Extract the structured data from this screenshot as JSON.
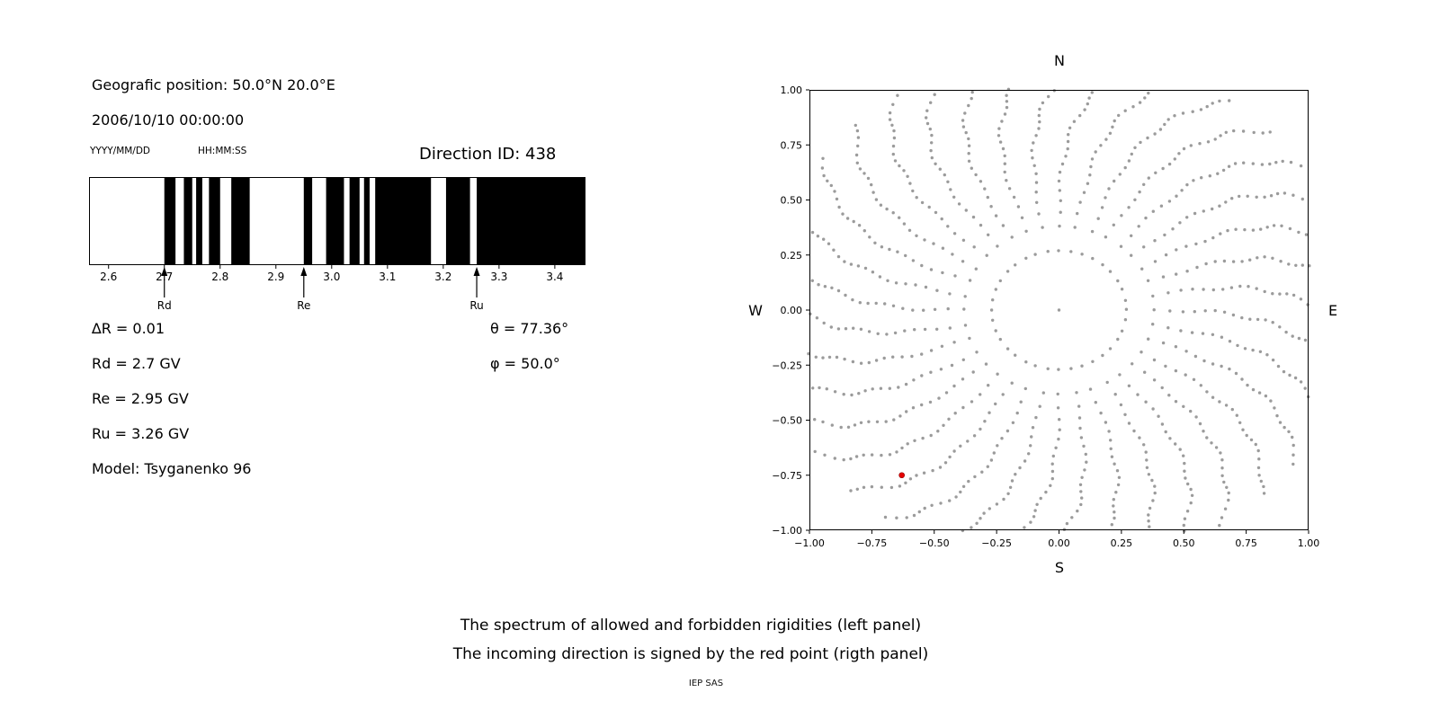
{
  "header": {
    "geographic_position": "Geografic position: 50.0°N 20.0°E",
    "datetime": "2006/10/10 00:00:00",
    "date_format_hint": "YYYY/MM/DD",
    "time_format_hint": "HH:MM:SS",
    "direction_id": "Direction ID: 438"
  },
  "parameters": {
    "delta_r": "∆R = 0.01",
    "theta": "θ = 77.36°",
    "rd": "Rd = 2.7 GV",
    "phi": "φ = 50.0°",
    "re": "Re = 2.95 GV",
    "ru": "Ru = 3.26 GV",
    "model": "Model: Tsyganenko 96"
  },
  "caption": {
    "line1": "The spectrum of allowed and forbidden rigidities (left panel)",
    "line2": "The incoming direction is signed by the red point (rigth panel)",
    "credit": "IEP SAS"
  },
  "chart_data": [
    {
      "type": "bar",
      "name": "rigidity_spectrum",
      "description": "Barcode spectrum of cosmic-ray rigidities: black bars = allowed, white gaps = forbidden",
      "xlabel_units": "GV",
      "xlim": [
        2.565,
        3.455
      ],
      "xticks": [
        2.6,
        2.7,
        2.8,
        2.9,
        3.0,
        3.1,
        3.2,
        3.3,
        3.4
      ],
      "allowed_intervals_gv": [
        [
          2.7,
          2.72
        ],
        [
          2.735,
          2.75
        ],
        [
          2.757,
          2.768
        ],
        [
          2.78,
          2.8
        ],
        [
          2.82,
          2.853
        ],
        [
          2.95,
          2.965
        ],
        [
          2.99,
          3.022
        ],
        [
          3.032,
          3.05
        ],
        [
          3.058,
          3.068
        ],
        [
          3.078,
          3.178
        ],
        [
          3.205,
          3.248
        ],
        [
          3.26,
          3.455
        ]
      ],
      "cutoff_markers": [
        {
          "label": "Rd",
          "value_gv": 2.7
        },
        {
          "label": "Re",
          "value_gv": 2.95
        },
        {
          "label": "Ru",
          "value_gv": 3.26
        }
      ],
      "colors": {
        "allowed": "#000000",
        "forbidden": "#ffffff",
        "axis": "#000000"
      }
    },
    {
      "type": "scatter",
      "name": "asymptotic_directions",
      "description": "Radial spokes of gray direction points; incoming direction marked by red point",
      "xlim": [
        -1.0,
        1.0
      ],
      "ylim": [
        -1.0,
        1.0
      ],
      "xticks": [
        -1.0,
        -0.75,
        -0.5,
        -0.25,
        0.0,
        0.25,
        0.5,
        0.75,
        1.0
      ],
      "yticks": [
        -1.0,
        -0.75,
        -0.5,
        -0.25,
        0.0,
        0.25,
        0.5,
        0.75,
        1.0
      ],
      "tick_decimals": 2,
      "compass": {
        "top": "N",
        "right": "E",
        "bottom": "S",
        "left": "W"
      },
      "spokes": {
        "count": 36,
        "points_per_spoke": 26,
        "inner_radius": 0.27,
        "outer_radius": 1.17,
        "radial_exponent": 0.65,
        "curl_rad": -0.28
      },
      "center_dot": true,
      "red_point": {
        "x": -0.63,
        "y": -0.75
      },
      "colors": {
        "dots": "#8a8a8a",
        "red_point": "#e60000",
        "axis": "#000000"
      }
    }
  ]
}
